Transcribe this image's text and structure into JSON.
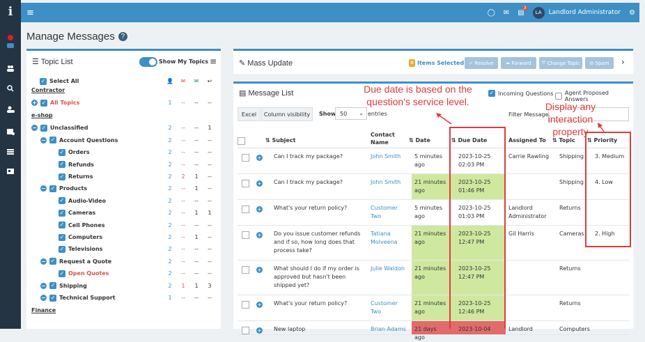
{
  "app": {
    "logo": "i",
    "page_title": "Manage Messages",
    "help_icon": "?"
  },
  "header": {
    "user_initials": "LA",
    "user_name": "Landlord Administrator",
    "notification_count": "3"
  },
  "topic_list": {
    "title": "Topic List",
    "show_my_topics": "Show My Topics",
    "select_all": "Select All",
    "groups": [
      {
        "label": "Contractor",
        "rows": [
          {
            "label": "All Topics",
            "indent": 0,
            "red": true,
            "c": [
              "1",
              "--",
              "--",
              "--"
            ]
          }
        ]
      },
      {
        "label": "e-shop",
        "rows": [
          {
            "label": "Unclassified",
            "indent": 0,
            "c": [
              "2",
              "--",
              "--",
              "1"
            ]
          },
          {
            "label": "Account Questions",
            "indent": 1,
            "c": [
              "2",
              "--",
              "--",
              "--"
            ]
          },
          {
            "label": "Orders",
            "indent": 2,
            "c": [
              "2",
              "--",
              "--",
              "--"
            ]
          },
          {
            "label": "Refunds",
            "indent": 2,
            "c": [
              "2",
              "--",
              "--",
              "--"
            ]
          },
          {
            "label": "Returns",
            "indent": 2,
            "c": [
              "2",
              "2",
              "1",
              "--"
            ]
          },
          {
            "label": "Products",
            "indent": 1,
            "c": [
              "2",
              "--",
              "1",
              "--"
            ]
          },
          {
            "label": "Audio-Video",
            "indent": 2,
            "c": [
              "2",
              "--",
              "--",
              "--"
            ]
          },
          {
            "label": "Cameras",
            "indent": 2,
            "c": [
              "2",
              "--",
              "1",
              "1"
            ]
          },
          {
            "label": "Cell Phones",
            "indent": 2,
            "c": [
              "2",
              "--",
              "--",
              "--"
            ]
          },
          {
            "label": "Computers",
            "indent": 2,
            "c": [
              "2",
              "--",
              "1",
              "--"
            ]
          },
          {
            "label": "Televisions",
            "indent": 2,
            "c": [
              "2",
              "--",
              "--",
              "--"
            ]
          },
          {
            "label": "Request a Quote",
            "indent": 1,
            "c": [
              "2",
              "--",
              "--",
              "--"
            ]
          },
          {
            "label": "Open Quotes",
            "indent": 2,
            "red": true,
            "c": [
              "2",
              "--",
              "--",
              "--"
            ]
          },
          {
            "label": "Shipping",
            "indent": 1,
            "c": [
              "2",
              "1",
              "1",
              "3"
            ]
          },
          {
            "label": "Technical Support",
            "indent": 1,
            "c": [
              "1",
              "--",
              "--",
              "--"
            ]
          }
        ]
      },
      {
        "label": "Finance",
        "rows": []
      }
    ]
  },
  "mass_update": {
    "title": "Mass Update",
    "items_selected": "Items Selected",
    "items_count": "0",
    "buttons": [
      "Resolve",
      "Forward",
      "Change Topic",
      "Spam"
    ]
  },
  "message_list": {
    "title": "Message List",
    "incoming_questions": "Incoming Questions",
    "agent_proposed": "Agent Proposed Answers",
    "excel": "Excel",
    "column_visibility": "Column visibility",
    "show": "Show",
    "page_size": "50",
    "entries": "entries",
    "filter_messages": "Filter Messages",
    "columns": {
      "subject": "Subject",
      "contact_name": "Contact Name",
      "date": "Date",
      "due_date": "Due Date",
      "assigned_to": "Assigned To",
      "topic": "Topic",
      "priority": "Priority"
    },
    "rows": [
      {
        "subject": "Can I track my package?",
        "contact": "John Smith",
        "date": "5 minutes ago",
        "date_hl": "",
        "due": "2023-10-25 02:03 PM",
        "assigned": "Carrie Rawling",
        "topic": "Shipping",
        "priority": "3. Medium"
      },
      {
        "subject": "Can I track my package?",
        "contact": "John Smith",
        "date": "21 minutes ago",
        "date_hl": "green",
        "due": "2023-10-25 01:46 PM",
        "assigned": "",
        "topic": "Shipping",
        "priority": "4. Low"
      },
      {
        "subject": "What's your return policy?",
        "contact": "Customer Two",
        "date": "5 minutes ago",
        "date_hl": "",
        "due": "2023-10-25 01:03 PM",
        "assigned": "Landlord Administrator",
        "topic": "Returns",
        "priority": ""
      },
      {
        "subject": "Do you issue customer refunds and if so, how long does that process take?",
        "contact": "Tatiana Molveena",
        "date": "21 minutes ago",
        "date_hl": "green",
        "due": "2023-10-25 12:47 PM",
        "assigned": "Gil Harris",
        "topic": "Cameras",
        "priority": "2. High"
      },
      {
        "subject": "What should I do if my order is approved but hasn't been shipped yet?",
        "contact": "Julie Waldon",
        "date": "21 minutes ago",
        "date_hl": "green",
        "due": "2023-10-25 12:47 PM",
        "assigned": "",
        "topic": "Returns",
        "priority": ""
      },
      {
        "subject": "What's your return policy?",
        "contact": "Customer Two",
        "date": "21 minutes ago",
        "date_hl": "green",
        "due": "2023-10-25 12:46 PM",
        "assigned": "",
        "topic": "Returns",
        "priority": ""
      },
      {
        "subject": "New laptop",
        "contact": "Brian Adams",
        "date": "21 days ago",
        "date_hl": "red",
        "due": "2023-10-04",
        "assigned": "Landlord",
        "topic": "Computers",
        "priority": ""
      }
    ]
  },
  "annotations": {
    "due_note": "Due date is based on the question's service level.",
    "priority_note": "Display any interaction property",
    "color": "#e23a3a"
  }
}
